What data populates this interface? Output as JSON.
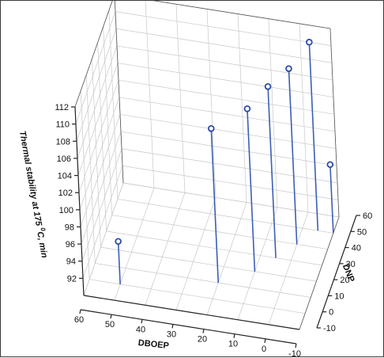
{
  "chart_data": {
    "type": "scatter3d",
    "title": "",
    "zlabel_main": "Thermal stability at 175 ",
    "zlabel_sup": "0",
    "zlabel_tail": "C, min",
    "xlabel": "DBOEP",
    "ylabel": "DNP",
    "xlim": [
      -10,
      60
    ],
    "ylim": [
      -10,
      60
    ],
    "zlim": [
      90,
      112
    ],
    "xticks": [
      60,
      50,
      40,
      30,
      20,
      10,
      0,
      -10
    ],
    "yticks": [
      -10,
      0,
      10,
      20,
      30,
      40,
      50,
      60
    ],
    "zticks": [
      92,
      94,
      96,
      98,
      100,
      102,
      104,
      106,
      108,
      110,
      112
    ],
    "grid": true,
    "marker_color": "#2c4aa8",
    "stem_color": "#3b5fb5",
    "points": [
      {
        "x": 50,
        "y": 0,
        "z": 95
      },
      {
        "x": 20,
        "y": 10,
        "z": 108
      },
      {
        "x": 10,
        "y": 20,
        "z": 109
      },
      {
        "x": 5,
        "y": 30,
        "z": 110
      },
      {
        "x": 0,
        "y": 40,
        "z": 110.5
      },
      {
        "x": -5,
        "y": 50,
        "z": 112
      },
      {
        "x": -10,
        "y": 50,
        "z": 98
      }
    ]
  }
}
